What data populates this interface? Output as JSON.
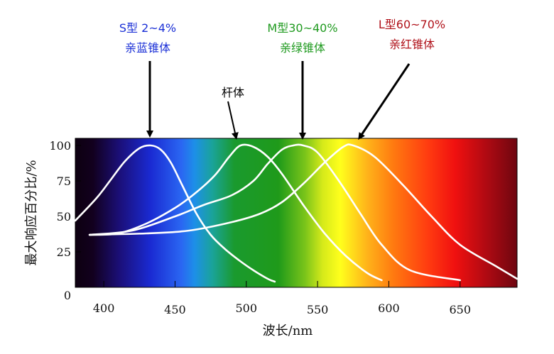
{
  "chart_data": {
    "type": "line",
    "xlabel": "波长/nm",
    "ylabel": "最大响应百分比/%",
    "x_ticks": [
      400,
      450,
      500,
      550,
      600,
      650
    ],
    "y_ticks": [
      0,
      25,
      50,
      75,
      100
    ],
    "xlim": [
      380,
      690
    ],
    "ylim": [
      0,
      105
    ],
    "grid": false,
    "background": "visible spectrum gradient",
    "series": [
      {
        "name": "S型 2~4% 亲蓝锥体",
        "color": "#ffffff",
        "x": [
          380,
          395,
          405,
          415,
          425,
          433,
          440,
          447,
          455,
          465,
          475,
          485,
          495,
          505,
          515,
          520
        ],
        "y": [
          47,
          63,
          76,
          89,
          98,
          100,
          97,
          88,
          72,
          52,
          37,
          27,
          19,
          12,
          6,
          4
        ]
      },
      {
        "name": "杆体",
        "color": "#ffffff",
        "x": [
          390,
          410,
          430,
          450,
          465,
          478,
          488,
          496,
          505,
          515,
          525,
          540,
          555,
          570,
          585,
          595
        ],
        "y": [
          37,
          38,
          45,
          56,
          67,
          79,
          92,
          100,
          99,
          92,
          80,
          58,
          38,
          22,
          10,
          5
        ]
      },
      {
        "name": "M型30~40% 亲绿锥体",
        "color": "#ffffff",
        "x": [
          390,
          420,
          450,
          470,
          490,
          505,
          515,
          525,
          533,
          540,
          550,
          565,
          580,
          595,
          615,
          650
        ],
        "y": [
          37,
          40,
          50,
          58,
          65,
          75,
          87,
          97,
          100,
          100,
          95,
          75,
          52,
          30,
          12,
          5
        ]
      },
      {
        "name": "L型60~70% 亲红锥体",
        "color": "#ffffff",
        "x": [
          390,
          430,
          460,
          490,
          510,
          525,
          540,
          555,
          568,
          575,
          590,
          610,
          630,
          650,
          675,
          690
        ],
        "y": [
          37,
          38,
          40,
          46,
          52,
          60,
          73,
          88,
          99,
          100,
          92,
          72,
          50,
          30,
          15,
          6
        ]
      }
    ]
  },
  "annotations": {
    "s_cone": {
      "line1": "S型 2~4%",
      "line2": "亲蓝锥体",
      "color": "#1a2fd6"
    },
    "rod": {
      "line1": "杆体"
    },
    "m_cone": {
      "line1": "M型30~40%",
      "line2": "亲绿锥体",
      "color": "#1f9a1f"
    },
    "l_cone": {
      "line1": "L型60~70%",
      "line2": "亲红锥体",
      "color": "#b0121a"
    }
  }
}
